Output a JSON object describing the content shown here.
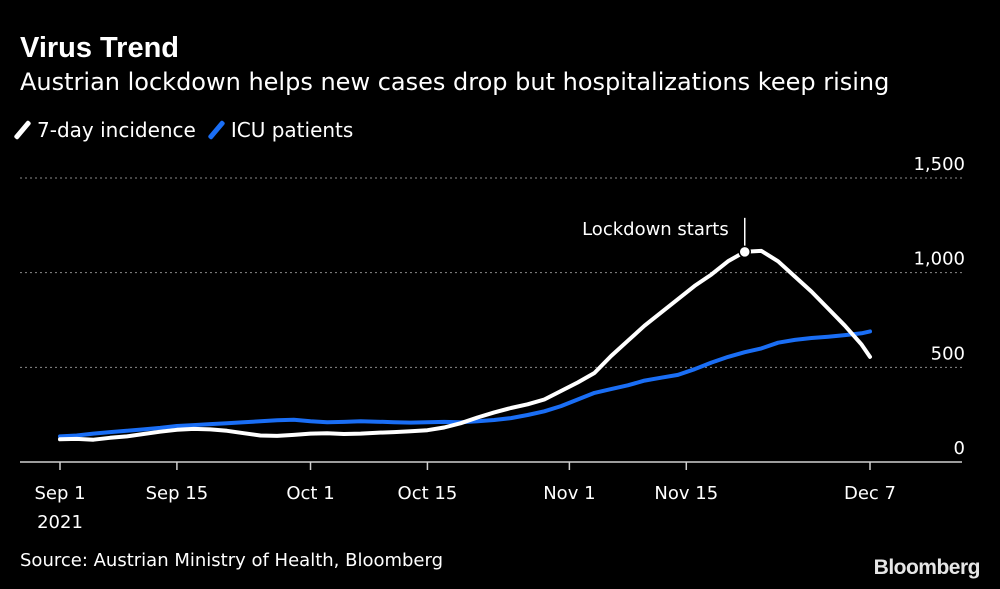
{
  "header": {
    "title": "Virus Trend",
    "subtitle": "Austrian lockdown helps new cases drop but hospitalizations keep rising"
  },
  "legend": [
    {
      "label": "7-day incidence",
      "color": "#ffffff"
    },
    {
      "label": "ICU patients",
      "color": "#1a6ef5"
    }
  ],
  "footer": {
    "source": "Source: Austrian Ministry of Health, Bloomberg",
    "logo": "Bloomberg"
  },
  "chart_data": {
    "type": "line",
    "title": "Virus Trend",
    "xlabel": "",
    "ylabel": "",
    "ylim": [
      0,
      1500
    ],
    "yticks": [
      0,
      500,
      1000,
      1500
    ],
    "ytick_labels": [
      "0",
      "500",
      "1,000",
      "1,500"
    ],
    "xlim_day": [
      0,
      97
    ],
    "xticks": [
      {
        "day": 0,
        "label": "Sep 1",
        "sublabel": "2021"
      },
      {
        "day": 14,
        "label": "Sep 15"
      },
      {
        "day": 30,
        "label": "Oct 1"
      },
      {
        "day": 44,
        "label": "Oct 15"
      },
      {
        "day": 61,
        "label": "Nov 1"
      },
      {
        "day": 75,
        "label": "Nov 15"
      },
      {
        "day": 97,
        "label": "Dec 7"
      }
    ],
    "annotation": {
      "label": "Lockdown starts",
      "day": 82,
      "value": 1110
    },
    "series": [
      {
        "name": "7-day incidence",
        "color": "#ffffff",
        "points": [
          [
            0,
            120
          ],
          [
            2,
            122
          ],
          [
            4,
            118
          ],
          [
            6,
            128
          ],
          [
            8,
            135
          ],
          [
            10,
            148
          ],
          [
            12,
            160
          ],
          [
            14,
            170
          ],
          [
            16,
            175
          ],
          [
            18,
            172
          ],
          [
            20,
            165
          ],
          [
            22,
            152
          ],
          [
            24,
            140
          ],
          [
            26,
            138
          ],
          [
            28,
            143
          ],
          [
            30,
            150
          ],
          [
            32,
            152
          ],
          [
            34,
            148
          ],
          [
            36,
            150
          ],
          [
            38,
            155
          ],
          [
            40,
            158
          ],
          [
            42,
            162
          ],
          [
            44,
            168
          ],
          [
            46,
            182
          ],
          [
            48,
            205
          ],
          [
            50,
            235
          ],
          [
            52,
            262
          ],
          [
            54,
            285
          ],
          [
            56,
            305
          ],
          [
            58,
            330
          ],
          [
            60,
            375
          ],
          [
            62,
            420
          ],
          [
            64,
            470
          ],
          [
            66,
            560
          ],
          [
            68,
            640
          ],
          [
            70,
            720
          ],
          [
            72,
            790
          ],
          [
            74,
            860
          ],
          [
            76,
            930
          ],
          [
            78,
            990
          ],
          [
            80,
            1060
          ],
          [
            82,
            1110
          ],
          [
            84,
            1115
          ],
          [
            86,
            1060
          ],
          [
            88,
            980
          ],
          [
            90,
            900
          ],
          [
            92,
            810
          ],
          [
            94,
            720
          ],
          [
            96,
            620
          ],
          [
            97,
            555
          ]
        ]
      },
      {
        "name": "ICU patients",
        "color": "#1a6ef5",
        "points": [
          [
            0,
            135
          ],
          [
            2,
            140
          ],
          [
            4,
            150
          ],
          [
            6,
            158
          ],
          [
            8,
            165
          ],
          [
            10,
            172
          ],
          [
            12,
            180
          ],
          [
            14,
            190
          ],
          [
            16,
            195
          ],
          [
            18,
            200
          ],
          [
            20,
            205
          ],
          [
            22,
            210
          ],
          [
            24,
            215
          ],
          [
            26,
            220
          ],
          [
            28,
            223
          ],
          [
            30,
            215
          ],
          [
            32,
            210
          ],
          [
            34,
            212
          ],
          [
            36,
            215
          ],
          [
            38,
            213
          ],
          [
            40,
            210
          ],
          [
            42,
            208
          ],
          [
            44,
            210
          ],
          [
            46,
            212
          ],
          [
            48,
            210
          ],
          [
            50,
            215
          ],
          [
            52,
            222
          ],
          [
            54,
            232
          ],
          [
            56,
            248
          ],
          [
            58,
            268
          ],
          [
            60,
            295
          ],
          [
            62,
            330
          ],
          [
            64,
            365
          ],
          [
            66,
            385
          ],
          [
            68,
            405
          ],
          [
            70,
            430
          ],
          [
            72,
            445
          ],
          [
            74,
            460
          ],
          [
            76,
            490
          ],
          [
            78,
            525
          ],
          [
            80,
            555
          ],
          [
            82,
            580
          ],
          [
            84,
            600
          ],
          [
            86,
            630
          ],
          [
            88,
            645
          ],
          [
            90,
            655
          ],
          [
            92,
            662
          ],
          [
            94,
            670
          ],
          [
            96,
            680
          ],
          [
            97,
            690
          ]
        ]
      }
    ]
  }
}
